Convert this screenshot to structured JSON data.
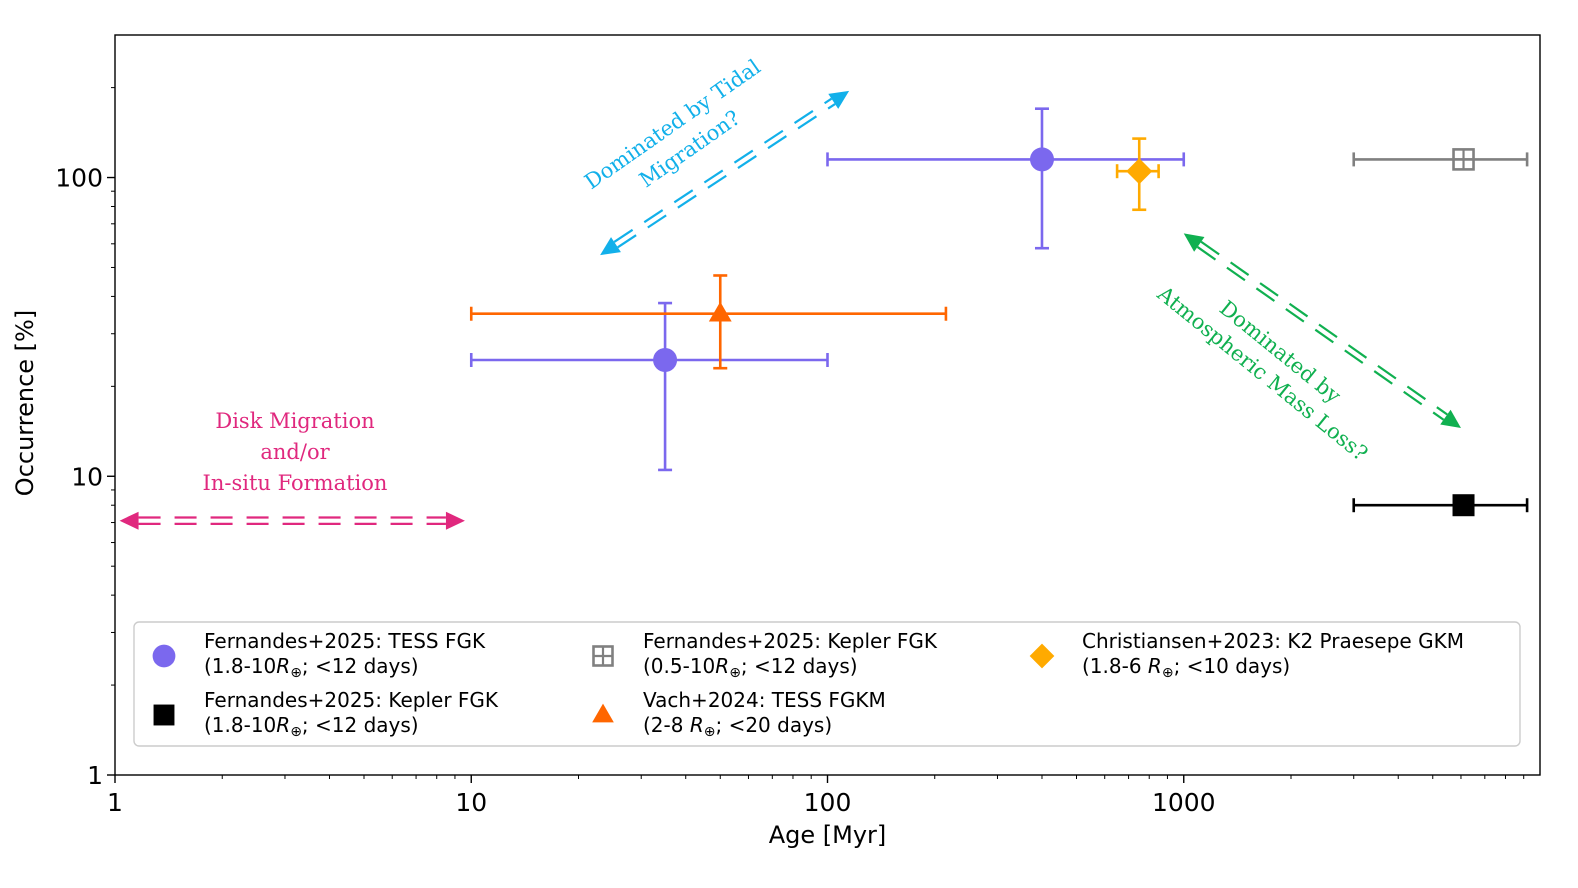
{
  "chart_data": {
    "type": "scatter",
    "title": "",
    "xlabel": "Age [Myr]",
    "ylabel": "Occurrence [%]",
    "xscale": "log",
    "yscale": "log",
    "xlim": [
      1,
      10000
    ],
    "ylim": [
      1,
      300
    ],
    "xticks": [
      {
        "value": 1,
        "label": "1"
      },
      {
        "value": 10,
        "label": "10"
      },
      {
        "value": 100,
        "label": "100"
      },
      {
        "value": 1000,
        "label": "1000"
      }
    ],
    "yticks": [
      {
        "value": 1,
        "label": "1"
      },
      {
        "value": 10,
        "label": "10"
      },
      {
        "value": 100,
        "label": "100"
      }
    ],
    "series": [
      {
        "id": "tess-fgk",
        "name": "Fernandes+2025: TESS FGK",
        "name_line2_prefix": "(1.8-10",
        "name_line2_suffix": "; <12 days)",
        "marker": "circle",
        "color": "#7b68ee",
        "points": [
          {
            "x": 35,
            "y": 24.5,
            "xerr": [
              10,
              100
            ],
            "yerr": [
              10.5,
              38
            ]
          },
          {
            "x": 400,
            "y": 115,
            "xerr": [
              100,
              1000
            ],
            "yerr": [
              58,
              170
            ]
          }
        ]
      },
      {
        "id": "kepler-fgk-small",
        "name": "Fernandes+2025: Kepler FGK",
        "name_line2_prefix": "(1.8-10",
        "name_line2_suffix": "; <12 days)",
        "marker": "square",
        "color": "#000000",
        "points": [
          {
            "x": 6100,
            "y": 8,
            "xerr": [
              3000,
              9200
            ],
            "yerr": null
          }
        ]
      },
      {
        "id": "kepler-fgk-wide",
        "name": "Fernandes+2025: Kepler FGK",
        "name_line2_prefix": "(0.5-10",
        "name_line2_suffix": "; <12 days)",
        "marker": "square-plus",
        "color": "#808080",
        "points": [
          {
            "x": 6100,
            "y": 115,
            "xerr": [
              3000,
              9200
            ],
            "yerr": null
          }
        ]
      },
      {
        "id": "vach-tess",
        "name": "Vach+2024: TESS FGKM",
        "name_line2_prefix": "(2-8 ",
        "name_line2_suffix": "; <20 days)",
        "marker": "triangle",
        "color": "#ff6600",
        "points": [
          {
            "x": 50,
            "y": 35,
            "xerr": [
              10,
              215
            ],
            "yerr": [
              23,
              47
            ]
          }
        ]
      },
      {
        "id": "christiansen-k2",
        "name": "Christiansen+2023: K2 Praesepe GKM",
        "name_line2_prefix": "(1.8-6 ",
        "name_line2_suffix": "; <10 days)",
        "marker": "diamond",
        "color": "#ffaa00",
        "points": [
          {
            "x": 750,
            "y": 105,
            "xerr": [
              650,
              850
            ],
            "yerr": [
              78,
              135
            ]
          }
        ]
      }
    ],
    "radius_symbol": "R",
    "radius_subscript": "⊕",
    "legend_location": "lower-center",
    "annotations": [
      {
        "id": "disk",
        "lines": [
          "Disk Migration",
          "and/or",
          "In-situ Formation"
        ],
        "color": "#e0287e",
        "arrow": {
          "from": [
            1.03,
            7.1
          ],
          "to": [
            9.6,
            7.1
          ],
          "heads": "both"
        }
      },
      {
        "id": "tidal",
        "lines": [
          "Dominated by Tidal",
          "Migration?"
        ],
        "color": "#12b0ea",
        "arrow": {
          "from": [
            23,
            55
          ],
          "to": [
            115,
            195
          ],
          "heads": "both"
        }
      },
      {
        "id": "atmospheric",
        "lines": [
          "Dominated by",
          "Atmospheric Mass Loss?"
        ],
        "color": "#10b050",
        "arrow": {
          "from": [
            1000,
            65
          ],
          "to": [
            6000,
            14.5
          ],
          "heads": "both"
        }
      }
    ]
  }
}
